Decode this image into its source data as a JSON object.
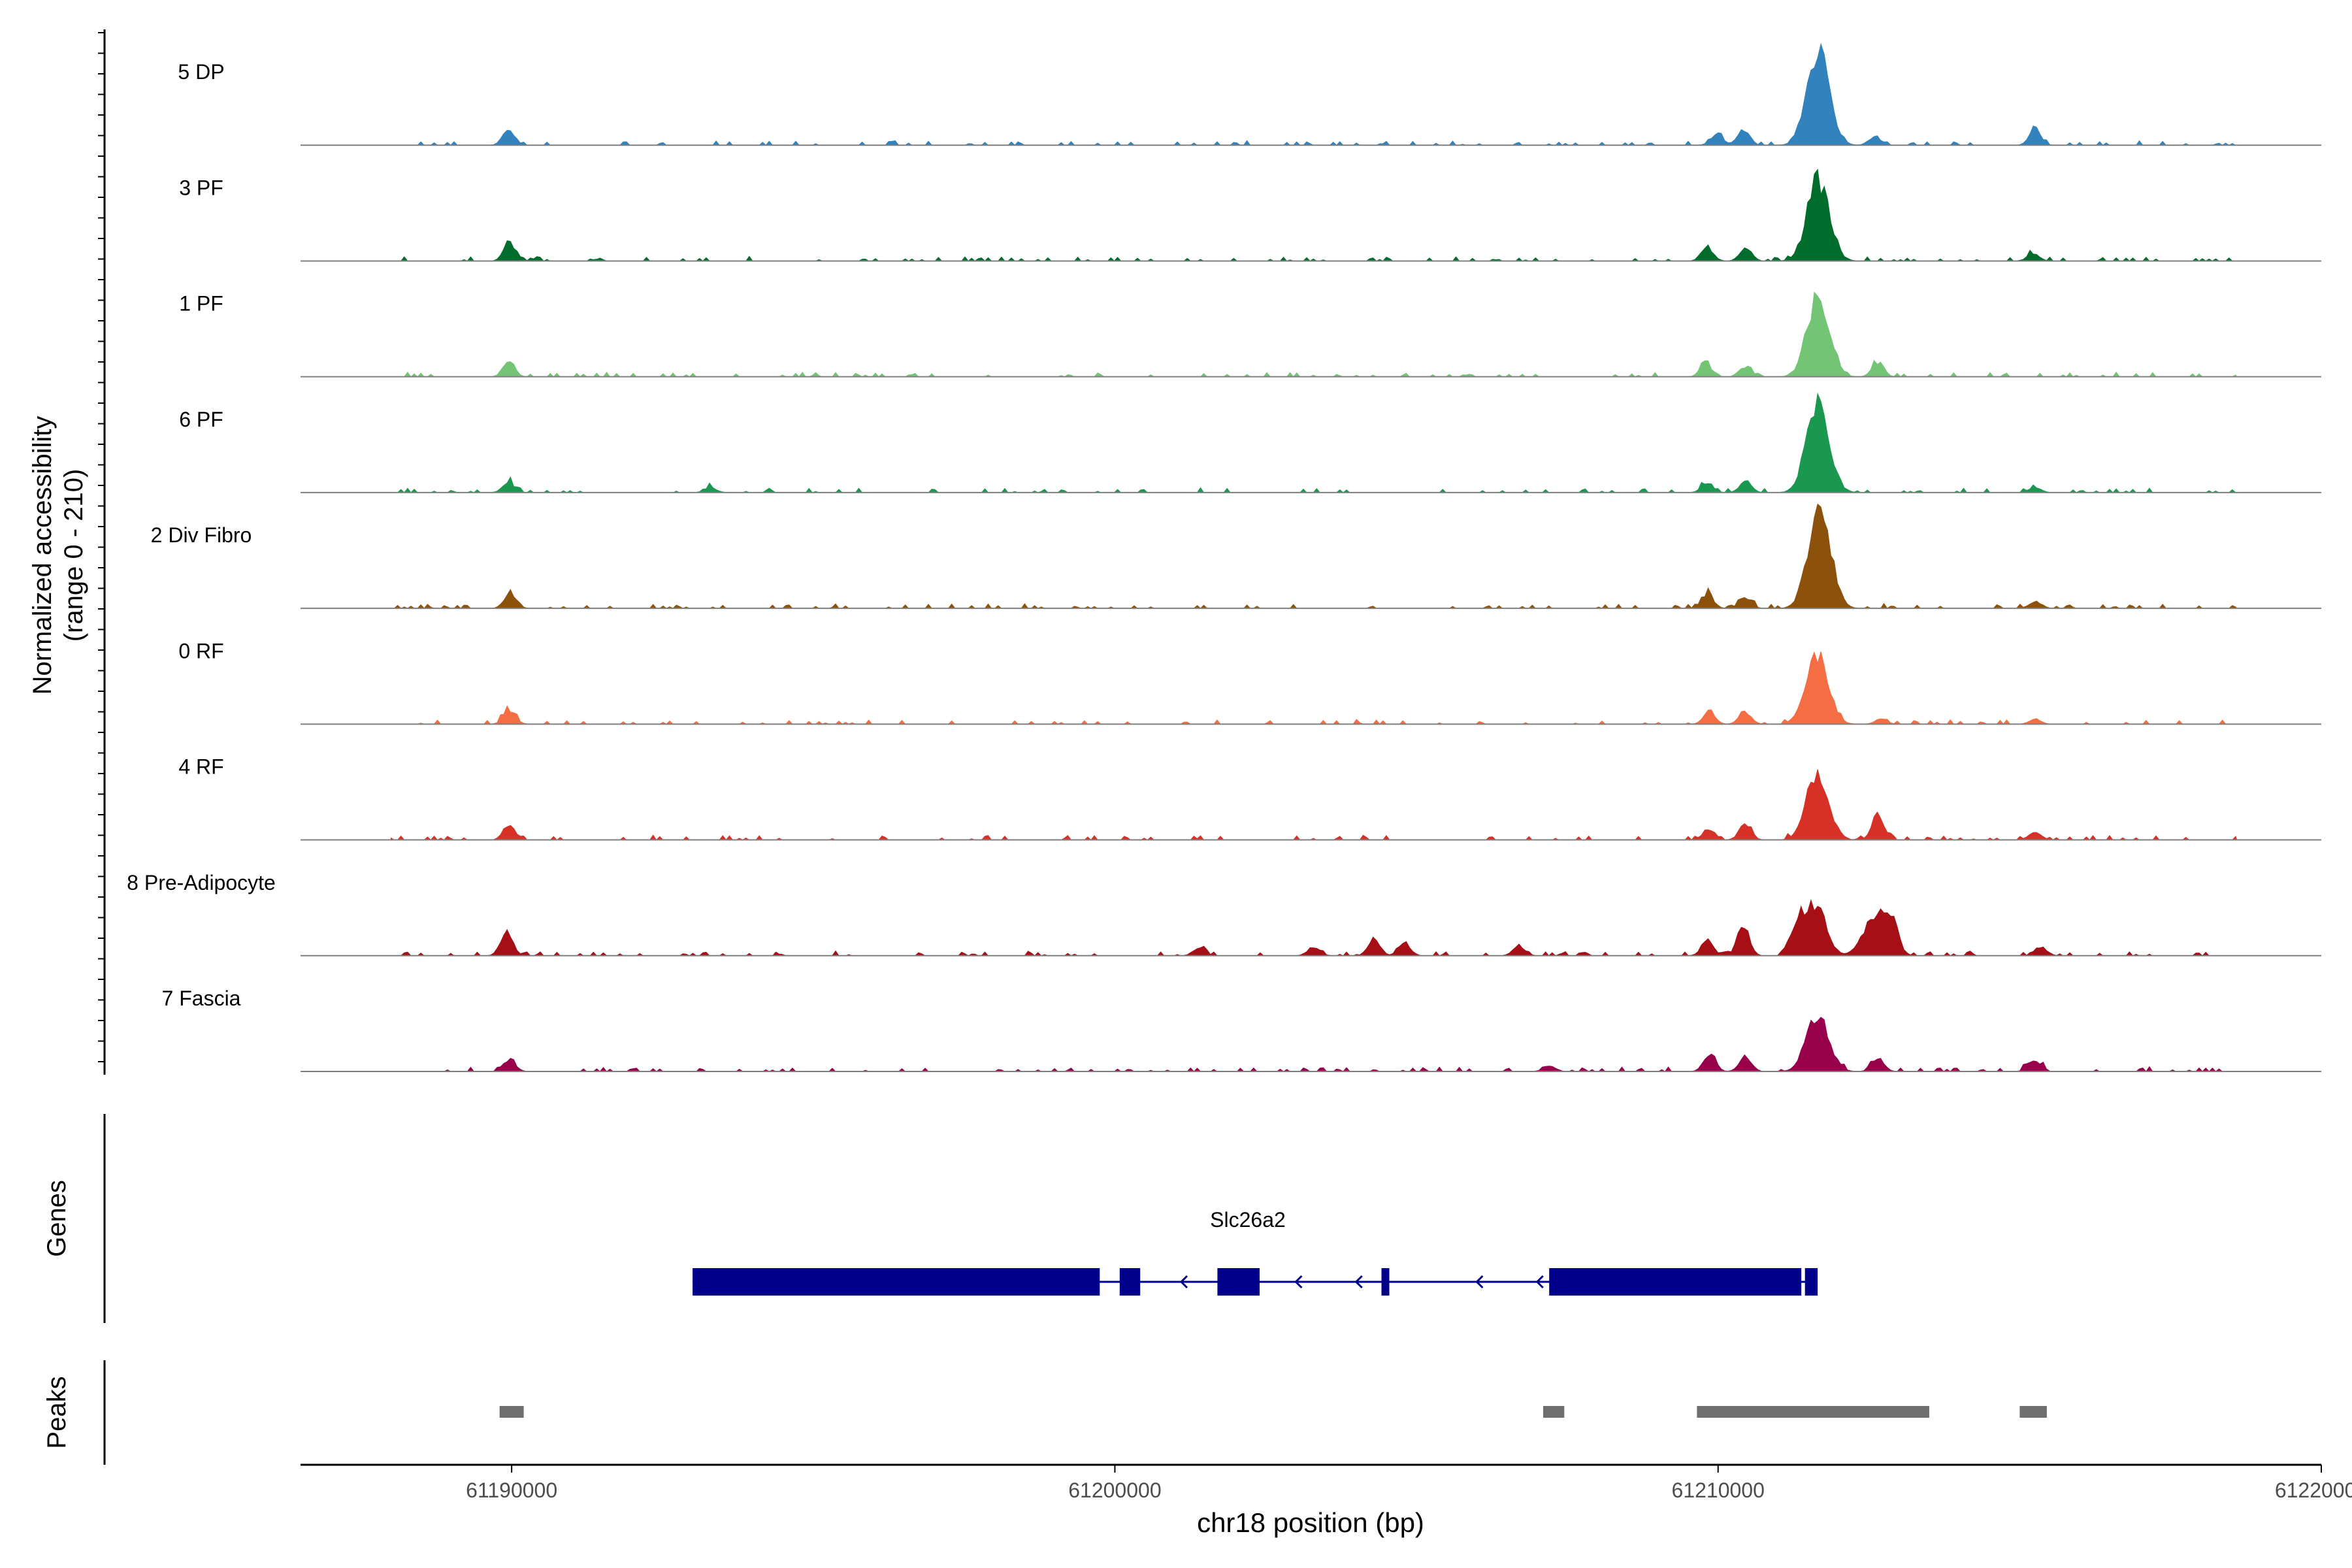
{
  "chart_data": {
    "type": "area",
    "title": "",
    "ylabel_line1": "Normalized accessibility",
    "ylabel_line2": "(range 0 - 210)",
    "yrange": [
      0,
      210
    ],
    "xlabel": "chr18 position (bp)",
    "xlim": [
      61186500,
      61220000
    ],
    "xticks": [
      "61190000",
      "61200000",
      "61210000",
      "61220000"
    ],
    "xtick_values": [
      61190000,
      61200000,
      61210000,
      61220000
    ],
    "genes_label": "Genes",
    "peaks_label": "Peaks",
    "tracks": [
      {
        "name": "5 DP",
        "color": "#3182BD",
        "profile": [
          [
            61189950,
            0.15
          ],
          [
            61209980,
            0.12
          ],
          [
            61210420,
            0.16
          ],
          [
            61211660,
            0.95
          ],
          [
            61212600,
            0.09
          ],
          [
            61215250,
            0.15
          ]
        ]
      },
      {
        "name": "3 PF",
        "color": "#006D2C",
        "profile": [
          [
            61189970,
            0.18
          ],
          [
            61209820,
            0.14
          ],
          [
            61210460,
            0.12
          ],
          [
            61211660,
            0.8
          ],
          [
            61215220,
            0.07
          ]
        ]
      },
      {
        "name": "1 PF",
        "color": "#74C476",
        "profile": [
          [
            61189950,
            0.14
          ],
          [
            61209800,
            0.13
          ],
          [
            61210450,
            0.1
          ],
          [
            61211660,
            0.78
          ],
          [
            61212650,
            0.14
          ]
        ]
      },
      {
        "name": "6 PF",
        "color": "#1A9850",
        "profile": [
          [
            61189950,
            0.1
          ],
          [
            61193300,
            0.05
          ],
          [
            61209820,
            0.09
          ],
          [
            61210450,
            0.11
          ],
          [
            61211660,
            0.88
          ],
          [
            61215250,
            0.05
          ]
        ]
      },
      {
        "name": "2 Div Fibro",
        "color": "#8C510A",
        "profile": [
          [
            61189980,
            0.15
          ],
          [
            61209820,
            0.14
          ],
          [
            61210450,
            0.11
          ],
          [
            61211680,
            1.0
          ],
          [
            61215260,
            0.07
          ]
        ]
      },
      {
        "name": "0 RF",
        "color": "#F46D43",
        "profile": [
          [
            61189960,
            0.14
          ],
          [
            61209850,
            0.11
          ],
          [
            61210450,
            0.12
          ],
          [
            61211640,
            0.7
          ],
          [
            61212700,
            0.05
          ],
          [
            61215260,
            0.05
          ]
        ]
      },
      {
        "name": "4 RF",
        "color": "#D73027",
        "profile": [
          [
            61189960,
            0.14
          ],
          [
            61209850,
            0.11
          ],
          [
            61210450,
            0.16
          ],
          [
            61211650,
            0.66
          ],
          [
            61212650,
            0.24
          ],
          [
            61215250,
            0.08
          ]
        ]
      },
      {
        "name": "8 Pre-Adipocyte",
        "color": "#A50F15",
        "profile": [
          [
            61189920,
            0.26
          ],
          [
            61201400,
            0.08
          ],
          [
            61203300,
            0.09
          ],
          [
            61204300,
            0.17
          ],
          [
            61204800,
            0.12
          ],
          [
            61206700,
            0.1
          ],
          [
            61209820,
            0.15
          ],
          [
            61210420,
            0.3
          ],
          [
            61211300,
            0.25
          ],
          [
            61211600,
            0.5
          ],
          [
            61212600,
            0.42
          ],
          [
            61212900,
            0.3
          ],
          [
            61215350,
            0.09
          ]
        ]
      },
      {
        "name": "7 Fascia",
        "color": "#99004C",
        "profile": [
          [
            61189960,
            0.12
          ],
          [
            61207200,
            0.06
          ],
          [
            61209860,
            0.16
          ],
          [
            61210450,
            0.16
          ],
          [
            61211650,
            0.58
          ],
          [
            61212650,
            0.14
          ],
          [
            61215240,
            0.12
          ]
        ]
      }
    ],
    "gene": {
      "name": "Slc26a2",
      "color": "#00008B",
      "start": 61193000,
      "end": 61211650,
      "strand": "-",
      "exons": [
        [
          61193000,
          61199750
        ],
        [
          61200080,
          61200420
        ],
        [
          61201700,
          61202400
        ],
        [
          61204420,
          61204550
        ],
        [
          61207200,
          61211380
        ],
        [
          61211440,
          61211650
        ]
      ]
    },
    "peaks": {
      "color": "#6E6E6E",
      "intervals": [
        [
          61189800,
          61190200
        ],
        [
          61207100,
          61207450
        ],
        [
          61209650,
          61213500
        ],
        [
          61215000,
          61215450
        ]
      ]
    }
  }
}
